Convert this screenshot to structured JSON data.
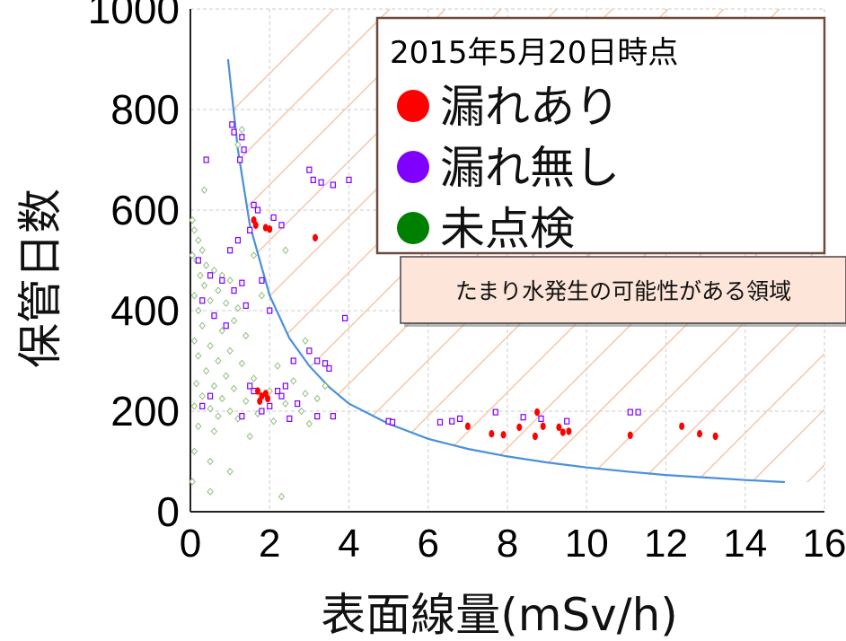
{
  "chart_data": {
    "type": "scatter",
    "xlabel": "表面線量(mSv/h)",
    "ylabel": "保管日数",
    "xlim": [
      0,
      16
    ],
    "ylim": [
      0,
      1000
    ],
    "x_ticks": [
      "0",
      "2",
      "4",
      "6",
      "8",
      "10",
      "12",
      "14",
      "16"
    ],
    "y_ticks": [
      "0",
      "200",
      "400",
      "600",
      "800",
      "1000"
    ],
    "grid": true,
    "legend": {
      "title": "2015年5月20日時点",
      "placement": "top-right",
      "entries": [
        {
          "label": "漏れあり",
          "color": "#ff0000"
        },
        {
          "label": "漏れ無し",
          "color": "#7f00ff"
        },
        {
          "label": "未点検",
          "color": "#008000"
        }
      ]
    },
    "annotation": "たまり水発生の可能性がある領域",
    "curve": {
      "color": "#4a90d9",
      "points": [
        [
          0.95,
          900
        ],
        [
          1.2,
          720
        ],
        [
          1.5,
          570
        ],
        [
          2,
          430
        ],
        [
          2.5,
          345
        ],
        [
          3,
          290
        ],
        [
          3.5,
          248
        ],
        [
          4,
          215
        ],
        [
          5,
          175
        ],
        [
          6,
          145
        ],
        [
          7,
          125
        ],
        [
          8,
          110
        ],
        [
          9,
          98
        ],
        [
          10,
          88
        ],
        [
          11,
          80
        ],
        [
          12,
          73
        ],
        [
          13,
          68
        ],
        [
          14,
          63
        ],
        [
          15,
          59
        ]
      ]
    },
    "series": [
      {
        "label": "漏れあり",
        "color": "#ff0000",
        "points": [
          [
            1.6,
            580
          ],
          [
            1.65,
            570
          ],
          [
            1.9,
            565
          ],
          [
            2.0,
            562
          ],
          [
            3.15,
            545
          ],
          [
            1.7,
            240
          ],
          [
            1.8,
            230
          ],
          [
            1.9,
            235
          ],
          [
            1.75,
            220
          ],
          [
            1.95,
            225
          ],
          [
            7.0,
            170
          ],
          [
            7.6,
            155
          ],
          [
            7.9,
            153
          ],
          [
            8.3,
            168
          ],
          [
            8.75,
            198
          ],
          [
            8.9,
            170
          ],
          [
            8.7,
            150
          ],
          [
            9.3,
            168
          ],
          [
            9.4,
            158
          ],
          [
            9.55,
            160
          ],
          [
            11.1,
            152
          ],
          [
            12.4,
            170
          ],
          [
            12.85,
            155
          ],
          [
            13.25,
            150
          ]
        ]
      },
      {
        "label": "漏れ無し",
        "color": "#7f00ff",
        "points": [
          [
            1.05,
            770
          ],
          [
            1.1,
            755
          ],
          [
            1.3,
            745
          ],
          [
            1.35,
            720
          ],
          [
            1.25,
            700
          ],
          [
            0.4,
            700
          ],
          [
            3.0,
            680
          ],
          [
            3.1,
            660
          ],
          [
            3.3,
            655
          ],
          [
            3.6,
            650
          ],
          [
            4.0,
            660
          ],
          [
            1.6,
            610
          ],
          [
            1.7,
            600
          ],
          [
            2.1,
            585
          ],
          [
            2.3,
            570
          ],
          [
            1.5,
            560
          ],
          [
            1.2,
            540
          ],
          [
            1.0,
            520
          ],
          [
            0.2,
            500
          ],
          [
            0.5,
            470
          ],
          [
            0.8,
            460
          ],
          [
            1.1,
            440
          ],
          [
            1.3,
            455
          ],
          [
            1.8,
            460
          ],
          [
            0.3,
            420
          ],
          [
            1.4,
            410
          ],
          [
            2.0,
            400
          ],
          [
            0.6,
            390
          ],
          [
            0.9,
            370
          ],
          [
            3.9,
            385
          ],
          [
            3.0,
            320
          ],
          [
            3.2,
            300
          ],
          [
            3.4,
            295
          ],
          [
            3.5,
            285
          ],
          [
            2.6,
            300
          ],
          [
            2.2,
            240
          ],
          [
            2.4,
            250
          ],
          [
            1.5,
            250
          ],
          [
            2.3,
            230
          ],
          [
            2.7,
            215
          ],
          [
            0.5,
            230
          ],
          [
            0.3,
            210
          ],
          [
            1.3,
            190
          ],
          [
            1.8,
            200
          ],
          [
            2.5,
            185
          ],
          [
            3.2,
            190
          ],
          [
            3.6,
            190
          ],
          [
            5.0,
            180
          ],
          [
            5.1,
            178
          ],
          [
            6.3,
            178
          ],
          [
            6.6,
            180
          ],
          [
            6.8,
            185
          ],
          [
            7.7,
            198
          ],
          [
            8.4,
            188
          ],
          [
            8.85,
            185
          ],
          [
            9.5,
            180
          ],
          [
            11.1,
            198
          ],
          [
            11.3,
            198
          ],
          [
            1.6,
            240
          ],
          [
            2.0,
            210
          ]
        ]
      },
      {
        "label": "未点検",
        "color": "#008000",
        "points": [
          [
            0.05,
            580
          ],
          [
            0.1,
            560
          ],
          [
            0.2,
            540
          ],
          [
            0.3,
            520
          ],
          [
            0.05,
            510
          ],
          [
            0.15,
            500
          ],
          [
            0.4,
            490
          ],
          [
            0.6,
            480
          ],
          [
            0.25,
            470
          ],
          [
            0.8,
            470
          ],
          [
            1.0,
            460
          ],
          [
            0.35,
            450
          ],
          [
            0.7,
            440
          ],
          [
            0.1,
            430
          ],
          [
            0.5,
            420
          ],
          [
            0.9,
            415
          ],
          [
            1.2,
            405
          ],
          [
            0.2,
            400
          ],
          [
            0.6,
            390
          ],
          [
            1.1,
            380
          ],
          [
            0.3,
            370
          ],
          [
            0.8,
            360
          ],
          [
            1.4,
            350
          ],
          [
            0.1,
            340
          ],
          [
            0.5,
            330
          ],
          [
            1.0,
            320
          ],
          [
            0.2,
            310
          ],
          [
            0.7,
            300
          ],
          [
            1.3,
            295
          ],
          [
            2.2,
            290
          ],
          [
            0.4,
            280
          ],
          [
            0.9,
            270
          ],
          [
            1.6,
            265
          ],
          [
            2.6,
            260
          ],
          [
            0.15,
            255
          ],
          [
            0.6,
            250
          ],
          [
            1.1,
            245
          ],
          [
            2.0,
            240
          ],
          [
            2.9,
            235
          ],
          [
            0.3,
            230
          ],
          [
            0.8,
            225
          ],
          [
            1.4,
            220
          ],
          [
            2.4,
            215
          ],
          [
            3.2,
            225
          ],
          [
            0.1,
            210
          ],
          [
            0.5,
            205
          ],
          [
            1.0,
            200
          ],
          [
            1.7,
            195
          ],
          [
            2.8,
            200
          ],
          [
            0.7,
            190
          ],
          [
            1.2,
            185
          ],
          [
            2.1,
            180
          ],
          [
            3.0,
            175
          ],
          [
            0.2,
            170
          ],
          [
            0.6,
            160
          ],
          [
            1.5,
            150
          ],
          [
            0.1,
            120
          ],
          [
            0.5,
            100
          ],
          [
            1.0,
            80
          ],
          [
            0.5,
            40
          ],
          [
            2.3,
            30
          ],
          [
            1.6,
            510
          ],
          [
            1.3,
            760
          ],
          [
            1.2,
            730
          ],
          [
            0.35,
            640
          ],
          [
            2.4,
            520
          ],
          [
            1.8,
            430
          ],
          [
            2.9,
            340
          ],
          [
            3.4,
            250
          ],
          [
            0.05,
            60
          ]
        ]
      }
    ]
  }
}
